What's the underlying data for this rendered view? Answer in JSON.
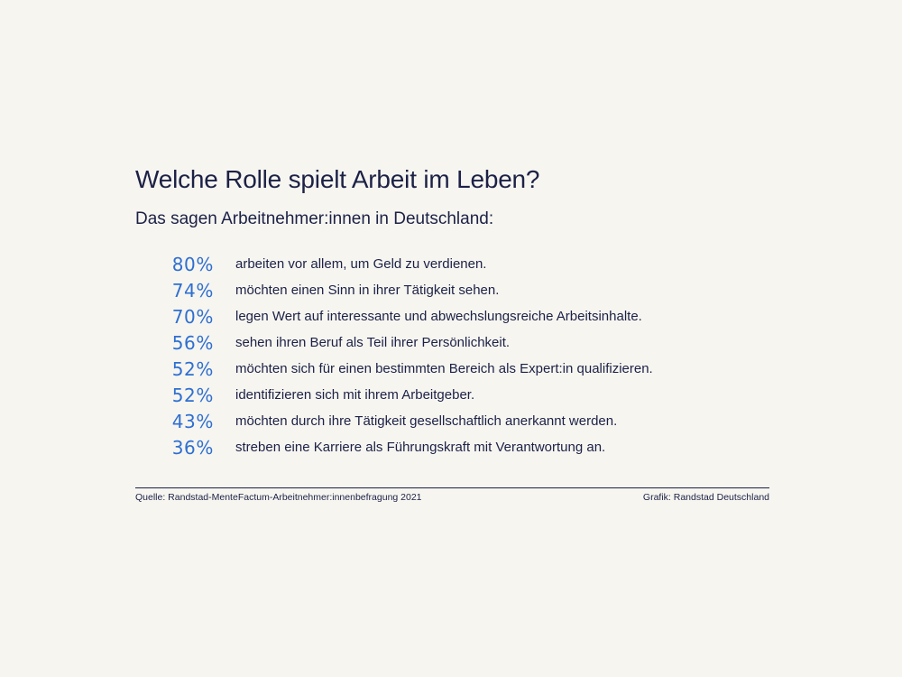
{
  "chart_data": {
    "type": "table",
    "title": "Welche Rolle spielt Arbeit im Leben?",
    "subtitle": "Das sagen Arbeitnehmer:innen in Deutschland:",
    "columns": [
      "value",
      "statement"
    ],
    "unit": "%",
    "rows": [
      {
        "value": 80,
        "display": "80%",
        "label": "arbeiten vor allem, um Geld zu verdienen."
      },
      {
        "value": 74,
        "display": "74%",
        "label": "möchten einen Sinn in ihrer Tätigkeit sehen."
      },
      {
        "value": 70,
        "display": "70%",
        "label": "legen Wert auf interessante und abwechslungsreiche Arbeitsinhalte."
      },
      {
        "value": 56,
        "display": "56%",
        "label": "sehen ihren Beruf als Teil ihrer Persönlichkeit."
      },
      {
        "value": 52,
        "display": "52%",
        "label": "möchten sich für einen bestimmten Bereich als Expert:in qualifizieren."
      },
      {
        "value": 52,
        "display": "52%",
        "label": "identifizieren sich mit ihrem Arbeitgeber."
      },
      {
        "value": 43,
        "display": "43%",
        "label": "möchten durch ihre Tätigkeit gesellschaftlich anerkannt werden."
      },
      {
        "value": 36,
        "display": "36%",
        "label": "streben eine Karriere als Führungskraft mit Verantwortung an."
      }
    ],
    "source": "Quelle: Randstad-MenteFactum-Arbeitnehmer:innenbefragung 2021",
    "credit": "Grafik: Randstad Deutschland"
  },
  "colors": {
    "background": "#f6f5f0",
    "text": "#1c2146",
    "accent": "#2f6fd0"
  }
}
